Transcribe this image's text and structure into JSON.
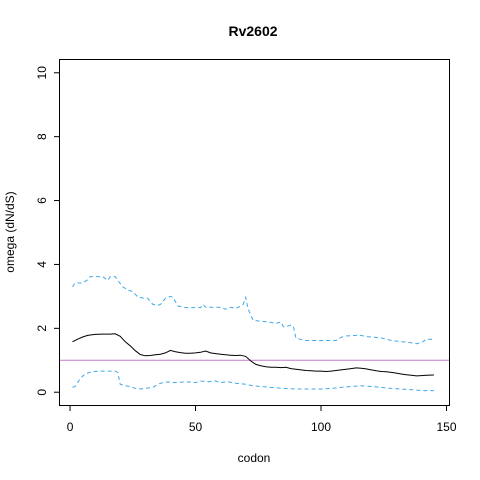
{
  "chart_data": {
    "type": "line",
    "title": "Rv2602",
    "xlabel": "codon",
    "ylabel": "omega (dN/dS)",
    "xlim": [
      -4,
      151
    ],
    "ylim": [
      -0.4,
      10.4
    ],
    "x_ticks": [
      0,
      50,
      100,
      150
    ],
    "y_ticks": [
      0,
      2,
      4,
      6,
      8,
      10
    ],
    "grid": false,
    "reference_line": {
      "y": 1,
      "color": "#c77cc7"
    },
    "series": [
      {
        "role": "estimate",
        "color": "#000000",
        "dash": "solid",
        "x": [
          1,
          3,
          5,
          7,
          10,
          13,
          16,
          18,
          20,
          22,
          24,
          26,
          28,
          30,
          32,
          34,
          36,
          38,
          40,
          42,
          44,
          46,
          48,
          50,
          52,
          54,
          56,
          58,
          60,
          62,
          64,
          66,
          68,
          70,
          72,
          74,
          76,
          78,
          80,
          82,
          84,
          86,
          88,
          90,
          92,
          94,
          96,
          98,
          100,
          102,
          104,
          106,
          108,
          110,
          112,
          114,
          116,
          118,
          120,
          122,
          124,
          126,
          128,
          130,
          132,
          134,
          136,
          138,
          140,
          142,
          145
        ],
        "y": [
          1.58,
          1.66,
          1.73,
          1.78,
          1.81,
          1.82,
          1.82,
          1.83,
          1.75,
          1.58,
          1.45,
          1.3,
          1.18,
          1.14,
          1.15,
          1.17,
          1.19,
          1.23,
          1.31,
          1.27,
          1.24,
          1.22,
          1.22,
          1.23,
          1.25,
          1.29,
          1.23,
          1.21,
          1.19,
          1.17,
          1.16,
          1.15,
          1.16,
          1.12,
          0.98,
          0.87,
          0.83,
          0.8,
          0.78,
          0.78,
          0.77,
          0.78,
          0.74,
          0.72,
          0.7,
          0.68,
          0.67,
          0.66,
          0.66,
          0.65,
          0.66,
          0.68,
          0.7,
          0.72,
          0.74,
          0.76,
          0.75,
          0.73,
          0.7,
          0.67,
          0.65,
          0.64,
          0.62,
          0.6,
          0.57,
          0.55,
          0.53,
          0.51,
          0.52,
          0.53,
          0.54
        ]
      },
      {
        "role": "upper-bound",
        "color": "#3fa9e8",
        "dash": "dashed",
        "x": [
          1,
          2,
          5,
          7,
          8,
          13,
          15,
          16,
          18,
          19,
          21,
          23,
          25,
          27,
          29,
          31,
          33,
          35,
          36,
          38,
          40,
          41,
          43,
          46,
          48,
          50,
          52,
          53,
          54,
          56,
          58,
          60,
          62,
          64,
          66,
          68,
          69,
          70,
          71,
          73,
          76,
          79,
          82,
          84,
          85,
          86,
          88,
          89,
          90,
          92,
          94,
          96,
          98,
          100,
          102,
          104,
          106,
          108,
          110,
          114,
          116,
          118,
          120,
          124,
          126,
          128,
          132,
          134,
          136,
          138,
          140,
          142,
          145
        ],
        "y": [
          3.3,
          3.42,
          3.42,
          3.52,
          3.62,
          3.62,
          3.5,
          3.62,
          3.62,
          3.5,
          3.3,
          3.2,
          3.15,
          2.98,
          2.95,
          2.94,
          2.75,
          2.72,
          2.75,
          2.94,
          3.0,
          2.97,
          2.7,
          2.65,
          2.65,
          2.65,
          2.65,
          2.75,
          2.66,
          2.66,
          2.66,
          2.66,
          2.6,
          2.66,
          2.62,
          2.7,
          2.75,
          2.97,
          2.6,
          2.25,
          2.22,
          2.2,
          2.15,
          2.2,
          2.05,
          2.05,
          2.1,
          2.05,
          1.7,
          1.65,
          1.62,
          1.62,
          1.62,
          1.62,
          1.62,
          1.62,
          1.62,
          1.72,
          1.76,
          1.78,
          1.78,
          1.74,
          1.73,
          1.7,
          1.66,
          1.62,
          1.58,
          1.57,
          1.55,
          1.52,
          1.55,
          1.66,
          1.66
        ]
      },
      {
        "role": "lower-bound",
        "color": "#3fa9e8",
        "dash": "dashed",
        "x": [
          1,
          2,
          4,
          6,
          7,
          9,
          12,
          15,
          18,
          19,
          20,
          22,
          24,
          26,
          28,
          30,
          33,
          35,
          37,
          39,
          42,
          45,
          48,
          50,
          52,
          55,
          58,
          60,
          63,
          66,
          70,
          73,
          76,
          80,
          85,
          90,
          95,
          100,
          104,
          108,
          112,
          116,
          120,
          124,
          128,
          132,
          136,
          140,
          145
        ],
        "y": [
          0.15,
          0.18,
          0.42,
          0.58,
          0.6,
          0.65,
          0.66,
          0.66,
          0.66,
          0.62,
          0.25,
          0.2,
          0.18,
          0.12,
          0.1,
          0.12,
          0.15,
          0.25,
          0.3,
          0.32,
          0.3,
          0.32,
          0.32,
          0.3,
          0.35,
          0.33,
          0.35,
          0.3,
          0.33,
          0.28,
          0.25,
          0.2,
          0.18,
          0.15,
          0.12,
          0.1,
          0.1,
          0.1,
          0.12,
          0.15,
          0.18,
          0.2,
          0.18,
          0.15,
          0.12,
          0.1,
          0.08,
          0.05,
          0.05
        ]
      }
    ]
  }
}
